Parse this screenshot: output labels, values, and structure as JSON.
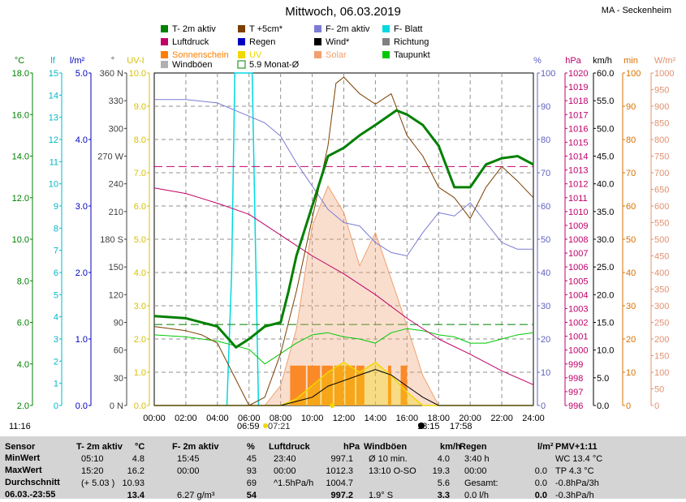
{
  "header": {
    "title": "Mittwoch, 06.03.2019",
    "station": "MA - Seckenheim"
  },
  "legend": [
    {
      "label": "T- 2m aktiv",
      "color": "#008000"
    },
    {
      "label": "T +5cm*",
      "color": "#7b3f00"
    },
    {
      "label": "F- 2m aktiv",
      "color": "#7b7bd6"
    },
    {
      "label": "F- Blatt",
      "color": "#00d8e0"
    },
    {
      "label": "Luftdruck",
      "color": "#c0006a"
    },
    {
      "label": "Regen",
      "color": "#0000c0"
    },
    {
      "label": "Wind*",
      "color": "#000000"
    },
    {
      "label": "Richtung",
      "color": "#808080"
    },
    {
      "label": "Sonnenschein",
      "color": "#ff7f00"
    },
    {
      "label": "UV",
      "color": "#f0d800"
    },
    {
      "label": "Solar",
      "color": "#f0a070"
    },
    {
      "label": "Taupunkt",
      "color": "#00c800"
    },
    {
      "label": "Windböen",
      "color": "#b0b0b0"
    },
    {
      "label": "5.9 Monat-Ø",
      "color": "#008000"
    }
  ],
  "axes": {
    "temp": {
      "unit": "°C",
      "ticks": [
        "18.0",
        "16.0",
        "14.0",
        "12.0",
        "10.0",
        "8.0",
        "6.0",
        "4.0",
        "2.0"
      ],
      "color": "#008000"
    },
    "leaf": {
      "unit": "lf",
      "ticks": [
        "15",
        "14",
        "13",
        "12",
        "11",
        "10",
        "9",
        "8",
        "7",
        "6",
        "5",
        "4",
        "3",
        "2",
        "1",
        "0"
      ],
      "color": "#00b8c8"
    },
    "rain": {
      "unit": "l/m²",
      "ticks": [
        "5.0",
        "4.0",
        "3.0",
        "2.0",
        "1.0",
        "0.0"
      ],
      "color": "#0000c0"
    },
    "dir": {
      "unit": "°",
      "ticks": [
        "360 N",
        "330",
        "300",
        "270 W",
        "240",
        "210",
        "180 S",
        "150",
        "120",
        "90",
        "60",
        "30",
        "0 N"
      ],
      "color": "#404040"
    },
    "uv": {
      "unit": "UV-I",
      "ticks": [
        "10.0",
        "9.0",
        "8.0",
        "7.0",
        "6.0",
        "5.0",
        "4.0",
        "3.0",
        "2.0",
        "1.0",
        "0.0"
      ],
      "color": "#d8c000"
    },
    "hum": {
      "unit": "%",
      "ticks": [
        "100",
        "90",
        "80",
        "70",
        "60",
        "50",
        "40",
        "30",
        "20",
        "10",
        "0"
      ],
      "color": "#6060c0"
    },
    "press": {
      "unit": "hPa",
      "ticks": [
        "1020",
        "1019",
        "1018",
        "1017",
        "1016",
        "1015",
        "1014",
        "1013",
        "1012",
        "1011",
        "1010",
        "1009",
        "1008",
        "1007",
        "1006",
        "1005",
        "1004",
        "1003",
        "1002",
        "1001",
        "1000",
        "999",
        "998",
        "997",
        "996"
      ],
      "color": "#c0006a"
    },
    "wind": {
      "unit": "km/h",
      "ticks": [
        "60.0",
        "55.0",
        "50.0",
        "45.0",
        "40.0",
        "35.0",
        "30.0",
        "25.0",
        "20.0",
        "15.0",
        "10.0",
        "5.0",
        "0.0"
      ],
      "color": "#000000"
    },
    "min": {
      "unit": "min",
      "ticks": [
        "100",
        "90",
        "80",
        "70",
        "60",
        "50",
        "40",
        "30",
        "20",
        "10",
        "0"
      ],
      "color": "#d87000"
    },
    "solar": {
      "unit": "W/m²",
      "ticks": [
        "1000",
        "950",
        "900",
        "850",
        "800",
        "750",
        "700",
        "650",
        "600",
        "550",
        "500",
        "450",
        "400",
        "350",
        "300",
        "250",
        "200",
        "150",
        "100",
        "50",
        "0"
      ],
      "color": "#e09070"
    }
  },
  "time_labels": [
    "00:00",
    "02:00",
    "04:00",
    "06:00",
    "08:00",
    "10:00",
    "12:00",
    "14:00",
    "16:00",
    "18:00",
    "20:00",
    "22:00",
    "24:00"
  ],
  "sun_labels": {
    "sunrise": "06:59",
    "sunrise2": "07:21",
    "noon": "11:16",
    "sunset": "18:15",
    "sunset2": "17:58"
  },
  "chart_data": {
    "type": "line",
    "title": "Mittwoch, 06.03.2019",
    "x_range": [
      "00:00",
      "24:00"
    ],
    "series": [
      {
        "name": "T- 2m aktiv",
        "unit": "°C",
        "x": [
          0,
          2,
          4,
          5.17,
          6,
          7,
          8,
          8.5,
          9,
          10,
          11,
          12,
          13,
          14,
          15.33,
          16,
          17,
          18,
          19,
          20,
          21,
          22,
          23,
          24
        ],
        "y": [
          6.3,
          6.2,
          5.8,
          4.8,
          5.2,
          5.8,
          6.0,
          7.5,
          9.2,
          11.6,
          14.0,
          14.4,
          15.0,
          15.5,
          16.2,
          16.0,
          15.5,
          14.5,
          12.5,
          12.5,
          13.6,
          13.9,
          14.0,
          13.6
        ]
      },
      {
        "name": "T +5cm*",
        "unit": "°C",
        "x": [
          0,
          2,
          3,
          4,
          5,
          6,
          7,
          8,
          9,
          10,
          11,
          11.5,
          12,
          13,
          14,
          15,
          16,
          17,
          18,
          19,
          20,
          21,
          22,
          23,
          24
        ],
        "y": [
          5.8,
          5.6,
          5.4,
          5.0,
          3.5,
          2.0,
          2.4,
          4.5,
          7.5,
          11.0,
          14.5,
          17.5,
          17.8,
          17.0,
          16.5,
          17.0,
          15.0,
          14.0,
          12.5,
          12.0,
          11.0,
          12.5,
          13.5,
          12.8,
          12.0
        ]
      },
      {
        "name": "F- 2m aktiv",
        "unit": "%",
        "x": [
          0,
          2,
          4,
          6,
          7,
          8,
          9,
          10,
          11,
          12,
          13,
          14,
          15,
          16,
          17,
          18,
          19,
          20,
          21,
          22,
          23,
          24
        ],
        "y": [
          92,
          92,
          91,
          87,
          85,
          81,
          73,
          66,
          59,
          55,
          54,
          49,
          46,
          45,
          52,
          58,
          57,
          61,
          55,
          49,
          47,
          47
        ]
      },
      {
        "name": "Luftdruck",
        "unit": "hPa",
        "x": [
          0,
          2,
          4,
          6,
          8,
          10,
          12,
          14,
          16,
          18,
          20,
          22,
          24
        ],
        "y": [
          1011.7,
          1011.3,
          1010.6,
          1009.8,
          1008.3,
          1006.8,
          1005.5,
          1004.0,
          1002.3,
          1000.8,
          999.7,
          998.5,
          997.5
        ]
      },
      {
        "name": "Taupunkt",
        "unit": "°C",
        "x": [
          0,
          2,
          4,
          6,
          7,
          8,
          9,
          10,
          11,
          12,
          13,
          14,
          15,
          16,
          17,
          18,
          19,
          20,
          21,
          22,
          23,
          24
        ],
        "y": [
          5.4,
          5.3,
          5.1,
          4.7,
          4.0,
          4.5,
          5.0,
          5.4,
          5.5,
          5.3,
          5.2,
          5.0,
          5.5,
          5.7,
          5.6,
          5.4,
          5.3,
          5.0,
          5.0,
          5.2,
          5.4,
          5.5
        ]
      },
      {
        "name": "Wind*",
        "unit": "km/h",
        "x": [
          0,
          8,
          10,
          11,
          12,
          13,
          14,
          15,
          16,
          17,
          18,
          24
        ],
        "y": [
          0,
          0,
          1.5,
          3.5,
          4.5,
          5.5,
          6.5,
          5.5,
          3.5,
          1.5,
          0,
          0
        ]
      },
      {
        "name": "Solar",
        "unit": "W/m²",
        "x": [
          0,
          7,
          8,
          9,
          10,
          11,
          12,
          13,
          14,
          15,
          16,
          17,
          18,
          24
        ],
        "y": [
          0,
          0,
          60,
          230,
          540,
          660,
          580,
          420,
          520,
          380,
          240,
          90,
          0,
          0
        ]
      },
      {
        "name": "UV",
        "unit": "UV-I",
        "x": [
          0,
          8,
          9,
          10,
          11,
          12,
          13,
          14,
          15,
          16,
          17,
          24
        ],
        "y": [
          0,
          0,
          0.2,
          0.6,
          1.0,
          1.3,
          1.0,
          1.3,
          0.9,
          0.4,
          0,
          0
        ]
      }
    ],
    "sunshine_blocks": [
      [
        8.6,
        9.6
      ],
      [
        9.7,
        10.5
      ],
      [
        10.6,
        11.3
      ],
      [
        11.4,
        12.0
      ],
      [
        12.1,
        12.7
      ],
      [
        12.8,
        13.3
      ],
      [
        14.8,
        15.0
      ],
      [
        15.6,
        16.0
      ]
    ],
    "ref_lines": [
      {
        "name": "5.9 Monat-Ø",
        "unit": "°C",
        "value": 5.9
      },
      {
        "name": "Luftdruck ref",
        "unit": "hPa",
        "value": 1013.25
      }
    ]
  },
  "stats": {
    "sensor": {
      "head": "Sensor",
      "rows": [
        "MinWert",
        "MaxWert",
        "Durchschnitt",
        "06.03.-23:55"
      ]
    },
    "t2m": {
      "head": "T- 2m aktiv",
      "unit": "°C",
      "rows": [
        [
          "05:10",
          "4.8"
        ],
        [
          "15:20",
          "16.2"
        ],
        [
          "(+ 5.03 )",
          "10.93"
        ],
        [
          "",
          "13.4"
        ]
      ]
    },
    "f2m": {
      "head": "F- 2m aktiv",
      "unit": "%",
      "rows": [
        [
          "15:45",
          "45"
        ],
        [
          "00:00",
          "93"
        ],
        [
          "",
          "69"
        ],
        [
          "6.27 g/m³",
          "54"
        ]
      ]
    },
    "press": {
      "head": "Luftdruck",
      "unit": "hPa",
      "rows": [
        [
          "23:40",
          "997.1"
        ],
        [
          "00:00",
          "1012.3"
        ],
        [
          "^1.5hPa/h",
          "1004.7"
        ],
        [
          "",
          "997.2"
        ]
      ]
    },
    "gust": {
      "head": "Windböen",
      "unit": "km/h",
      "rows": [
        [
          "Ø 10 min.",
          "4.0"
        ],
        [
          "13:10  O-SO",
          "19.3"
        ],
        [
          "",
          "5.6"
        ],
        [
          "1.9° S",
          "3.3"
        ]
      ]
    },
    "rain": {
      "head": "Regen",
      "unit": "l/m²",
      "rows": [
        [
          "3:40 h",
          ""
        ],
        [
          "00:00",
          "0.0"
        ],
        [
          "Gesamt:",
          "0.0"
        ],
        [
          "0.0 l/h",
          "0.0"
        ]
      ]
    },
    "pmv": {
      "head": "PMV+1:11",
      "rows": [
        "WC 13.4 °C",
        "TP 4.3 °C",
        "-0.8hPa/3h",
        "-0.3hPa/h"
      ]
    }
  }
}
